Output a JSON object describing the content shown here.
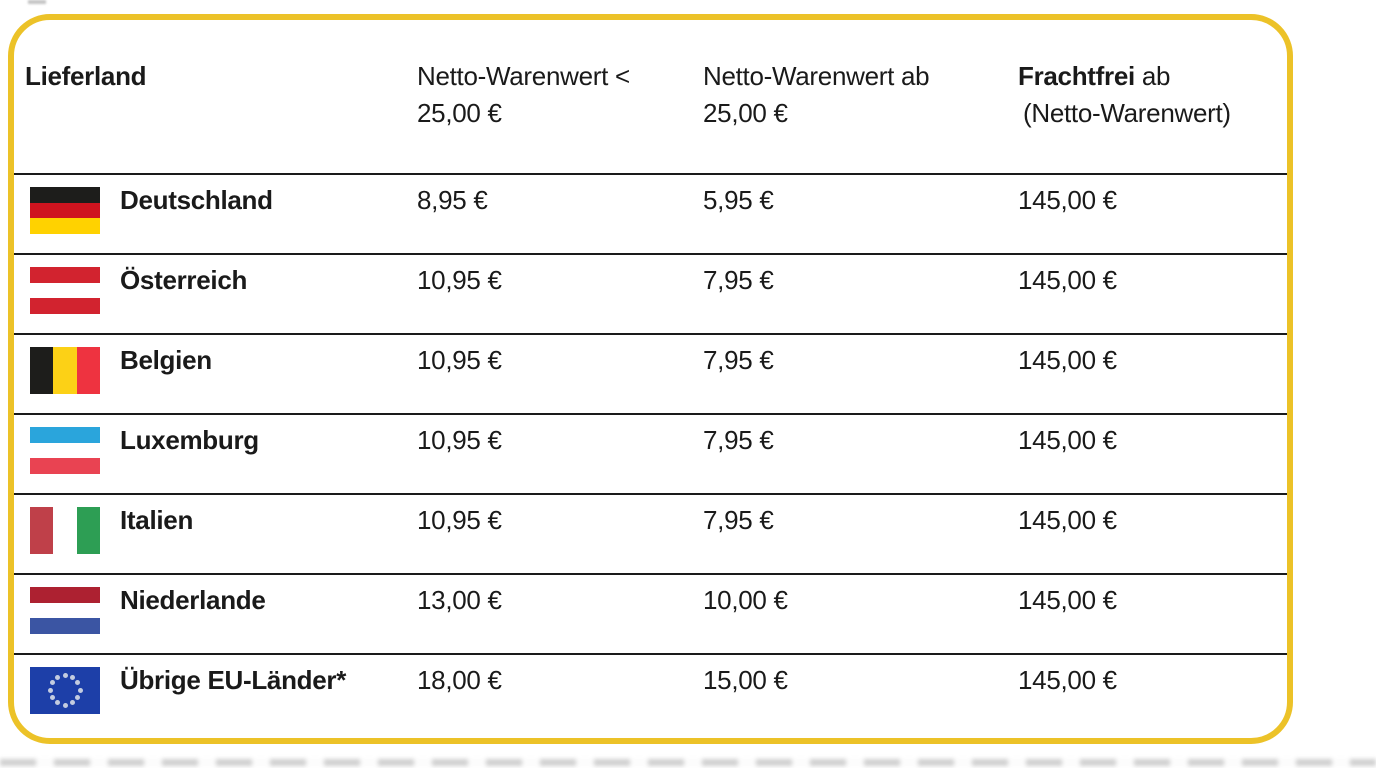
{
  "table": {
    "accent_border_color": "#ECC228",
    "separator_color": "#1a1a1a",
    "header": {
      "col1": "Lieferland",
      "col2_line1": "Netto-Warenwert <",
      "col2_line2": "25,00 €",
      "col3_line1": "Netto-Warenwert ab",
      "col3_line2": "25,00 €",
      "col4_bold": "Frachtfrei",
      "col4_rest": " ab",
      "col4_line2": "(Netto-Warenwert)"
    },
    "rows": [
      {
        "country": "Deutschland",
        "flag": {
          "name": "germany-flag",
          "orientation": "horizontal",
          "stripes": [
            "#1d1d1b",
            "#ce141f",
            "#ffd200"
          ]
        },
        "below25": "8,95 €",
        "from25": "5,95 €",
        "free_from": "145,00 €"
      },
      {
        "country": "Österreich",
        "flag": {
          "name": "austria-flag",
          "orientation": "horizontal",
          "stripes": [
            "#d2232f",
            "#ffffff",
            "#d2232f"
          ]
        },
        "below25": "10,95 €",
        "from25": "7,95 €",
        "free_from": "145,00 €"
      },
      {
        "country": "Belgien",
        "flag": {
          "name": "belgium-flag",
          "orientation": "vertical",
          "stripes": [
            "#1d1d1b",
            "#fcd116",
            "#ee3340"
          ]
        },
        "below25": "10,95 €",
        "from25": "7,95 €",
        "free_from": "145,00 €"
      },
      {
        "country": "Luxemburg",
        "flag": {
          "name": "luxembourg-flag",
          "orientation": "horizontal",
          "stripes": [
            "#2aa5dc",
            "#ffffff",
            "#e94352"
          ]
        },
        "below25": "10,95 €",
        "from25": "7,95 €",
        "free_from": "145,00 €"
      },
      {
        "country": "Italien",
        "flag": {
          "name": "italy-flag",
          "orientation": "vertical",
          "stripes": [
            "#bf4049",
            "#ffffff",
            "#2d9e54"
          ]
        },
        "below25": "10,95 €",
        "from25": "7,95 €",
        "free_from": "145,00 €"
      },
      {
        "country": "Niederlande",
        "flag": {
          "name": "netherlands-flag",
          "orientation": "horizontal",
          "stripes": [
            "#ad2131",
            "#ffffff",
            "#3b55a3"
          ]
        },
        "below25": "13,00 €",
        "from25": "10,00 €",
        "free_from": "145,00 €"
      },
      {
        "country": "Übrige EU-Länder*",
        "flag": {
          "name": "eu-flag",
          "type": "stars",
          "bg": "#1d3fa8",
          "star": "#c3cce0"
        },
        "below25": "18,00 €",
        "from25": "15,00 €",
        "free_from": "145,00 €"
      }
    ]
  },
  "chart_data": {
    "type": "table",
    "title": "",
    "columns": [
      "Lieferland",
      "Netto-Warenwert < 25,00 €",
      "Netto-Warenwert ab 25,00 €",
      "Frachtfrei ab (Netto-Warenwert)"
    ],
    "rows": [
      [
        "Deutschland",
        "8,95 €",
        "5,95 €",
        "145,00 €"
      ],
      [
        "Österreich",
        "10,95 €",
        "7,95 €",
        "145,00 €"
      ],
      [
        "Belgien",
        "10,95 €",
        "7,95 €",
        "145,00 €"
      ],
      [
        "Luxemburg",
        "10,95 €",
        "7,95 €",
        "145,00 €"
      ],
      [
        "Italien",
        "10,95 €",
        "7,95 €",
        "145,00 €"
      ],
      [
        "Niederlande",
        "13,00 €",
        "10,00 €",
        "145,00 €"
      ],
      [
        "Übrige EU-Länder*",
        "18,00 €",
        "15,00 €",
        "145,00 €"
      ]
    ]
  }
}
